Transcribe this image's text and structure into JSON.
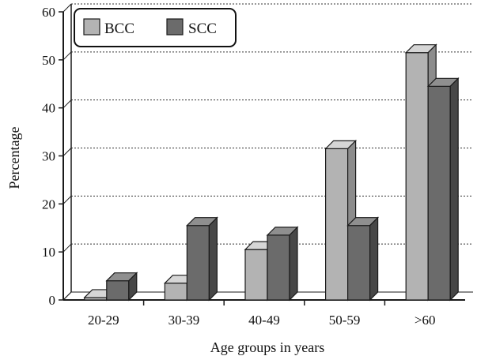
{
  "chart_data": {
    "type": "bar",
    "style": "3d-clustered",
    "categories": [
      "20-29",
      "30-39",
      "40-49",
      "50-59",
      ">60"
    ],
    "series": [
      {
        "name": "BCC",
        "values": [
          0.5,
          3.5,
          10.5,
          31.5,
          51.5
        ]
      },
      {
        "name": "SCC",
        "values": [
          4.0,
          15.5,
          13.5,
          15.5,
          44.5
        ]
      }
    ],
    "xlabel": "Age groups in years",
    "ylabel": "Percentage",
    "ylim": [
      0,
      60
    ],
    "yticks": [
      "0",
      "10",
      "20",
      "30",
      "40",
      "50",
      "60"
    ],
    "grid": "horizontal dotted",
    "legend_position": "top-left",
    "colors": {
      "BCC_front": "#b3b3b3",
      "BCC_top": "#d6d6d6",
      "BCC_side": "#8c8c8c",
      "SCC_front": "#6b6b6b",
      "SCC_top": "#8f8f8f",
      "SCC_side": "#474747",
      "outline": "#1a1a1a",
      "grid": "#333333"
    }
  }
}
